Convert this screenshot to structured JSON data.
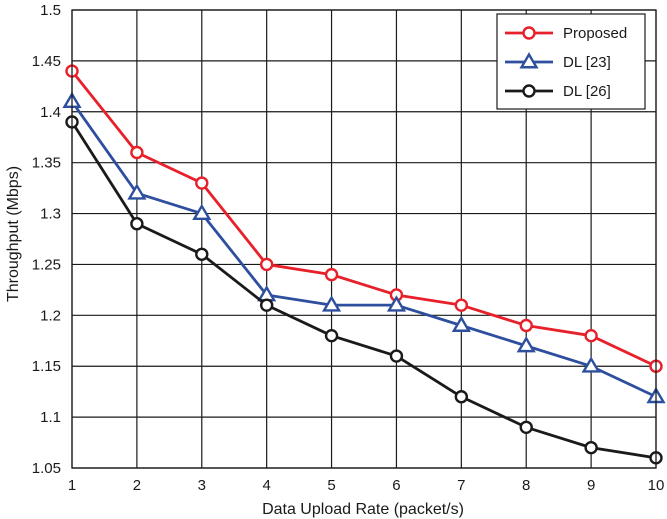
{
  "chart_data": {
    "type": "line",
    "title": "",
    "xlabel": "Data Upload Rate (packet/s)",
    "ylabel": "Throughput (Mbps)",
    "x": [
      1,
      2,
      3,
      4,
      5,
      6,
      7,
      8,
      9,
      10
    ],
    "xlim": [
      1,
      10
    ],
    "ylim": [
      1.05,
      1.5
    ],
    "xticks": [
      "1",
      "2",
      "3",
      "4",
      "5",
      "6",
      "7",
      "8",
      "9",
      "10"
    ],
    "yticks": [
      "1.05",
      "1.1",
      "1.15",
      "1.2",
      "1.25",
      "1.3",
      "1.35",
      "1.4",
      "1.45",
      "1.5"
    ],
    "grid": true,
    "legend_position": "top-right",
    "series": [
      {
        "name": "Proposed",
        "color": "#e8202a",
        "marker": "circle",
        "values": [
          1.44,
          1.36,
          1.33,
          1.25,
          1.24,
          1.22,
          1.21,
          1.19,
          1.18,
          1.15
        ]
      },
      {
        "name": "DL [23]",
        "color": "#2e4f9e",
        "marker": "triangle",
        "values": [
          1.41,
          1.32,
          1.3,
          1.22,
          1.21,
          1.21,
          1.19,
          1.17,
          1.15,
          1.12
        ]
      },
      {
        "name": "DL [26]",
        "color": "#1a1a1a",
        "marker": "circle",
        "values": [
          1.39,
          1.29,
          1.26,
          1.21,
          1.18,
          1.16,
          1.12,
          1.09,
          1.07,
          1.06
        ]
      }
    ]
  }
}
